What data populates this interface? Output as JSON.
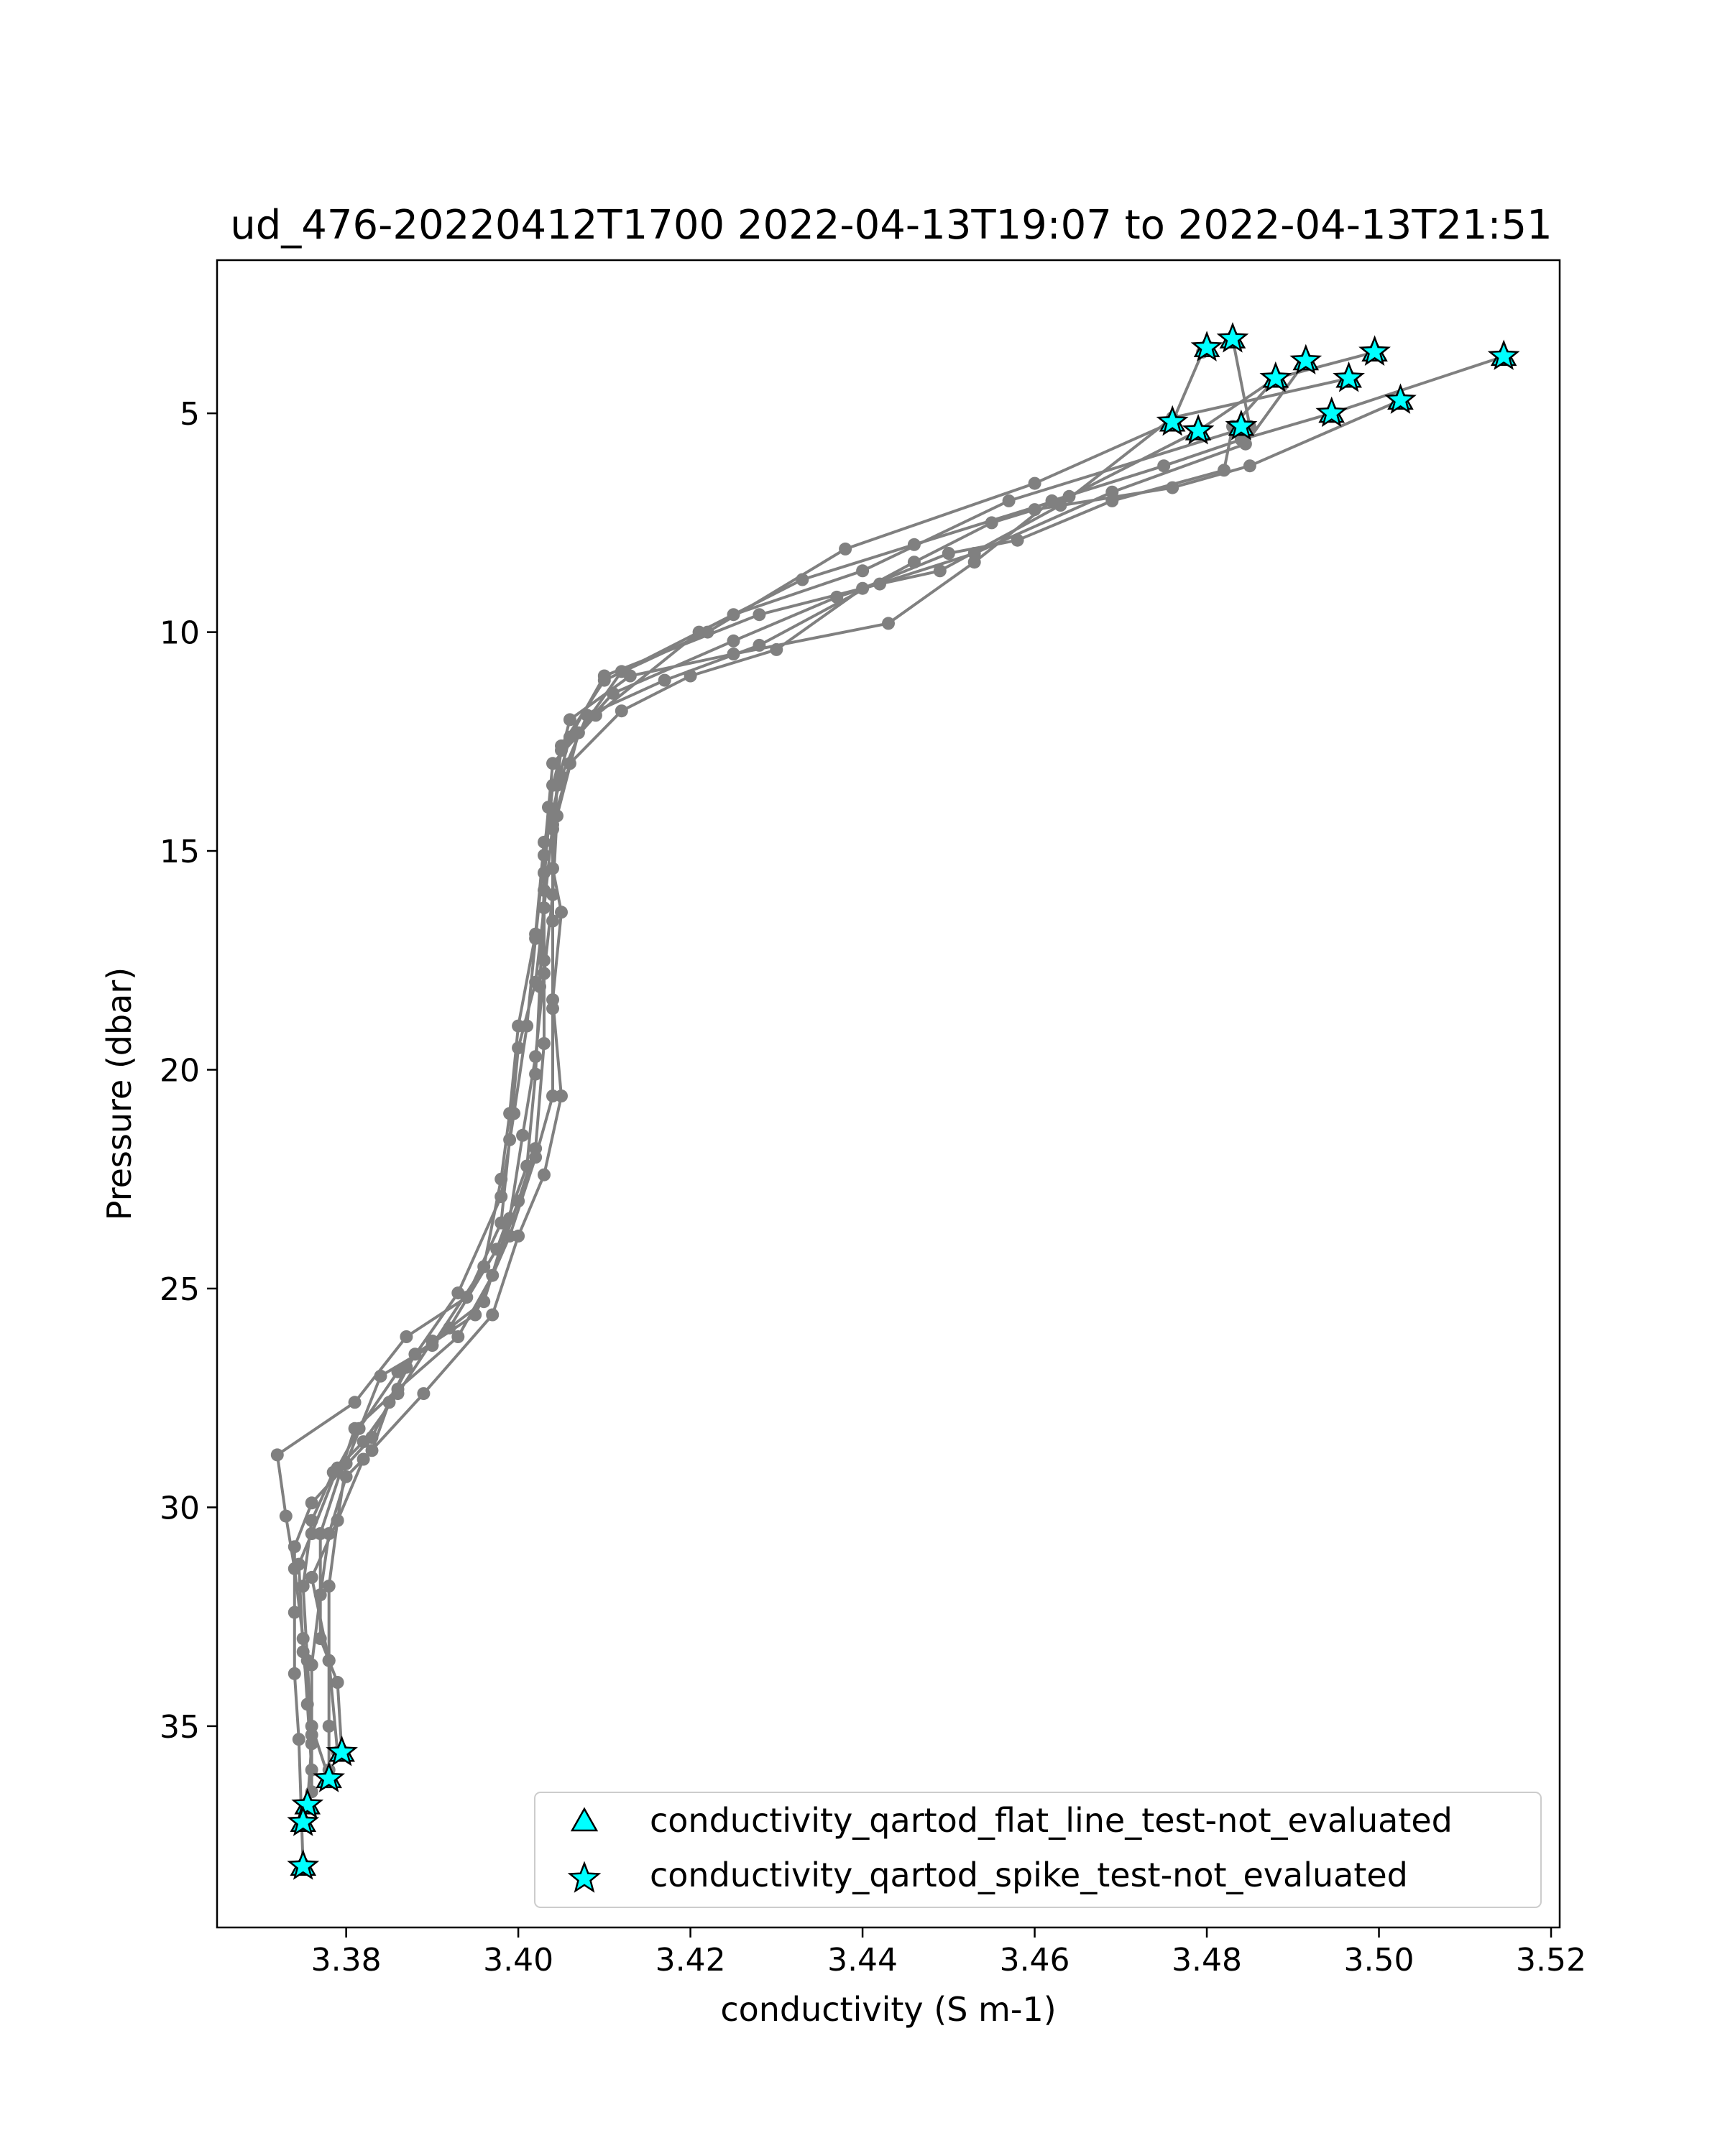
{
  "chart_data": {
    "type": "scatter",
    "title": "ud_476-20220412T1700 2022-04-13T19:07 to 2022-04-13T21:51",
    "xlabel": "conductivity (S m-1)",
    "ylabel": "Pressure (dbar)",
    "xlim": [
      3.365,
      3.521
    ],
    "ylim": [
      39.6,
      1.5
    ],
    "y_inverted": true,
    "grid": false,
    "x_ticks": [
      {
        "value": 3.38,
        "label": "3.38"
      },
      {
        "value": 3.4,
        "label": "3.40"
      },
      {
        "value": 3.42,
        "label": "3.42"
      },
      {
        "value": 3.44,
        "label": "3.44"
      },
      {
        "value": 3.46,
        "label": "3.46"
      },
      {
        "value": 3.48,
        "label": "3.48"
      },
      {
        "value": 3.5,
        "label": "3.50"
      },
      {
        "value": 3.52,
        "label": "3.52"
      }
    ],
    "y_ticks": [
      {
        "value": 5,
        "label": "5"
      },
      {
        "value": 10,
        "label": "10"
      },
      {
        "value": 15,
        "label": "15"
      },
      {
        "value": 20,
        "label": "20"
      },
      {
        "value": 25,
        "label": "25"
      },
      {
        "value": 30,
        "label": "30"
      },
      {
        "value": 35,
        "label": "35"
      }
    ],
    "colors": {
      "profile": "#808080",
      "flag_fill": "#00ffff",
      "flag_edge": "#000000"
    },
    "legend": {
      "placement": "lower right",
      "entries": [
        {
          "label": "conductivity_qartod_flat_line_test-not_evaluated",
          "marker": "triangle"
        },
        {
          "label": "conductivity_qartod_spike_test-not_evaluated",
          "marker": "star"
        }
      ]
    },
    "profiles": [
      {
        "points": [
          [
            3.4795,
            3.6
          ],
          [
            3.476,
            5.2
          ],
          [
            3.46,
            6.6
          ],
          [
            3.438,
            8.1
          ],
          [
            3.422,
            10.0
          ],
          [
            3.41,
            11.1
          ],
          [
            3.405,
            12.6
          ],
          [
            3.404,
            14.5
          ],
          [
            3.404,
            16.6
          ],
          [
            3.404,
            18.6
          ],
          [
            3.404,
            20.6
          ],
          [
            3.402,
            22.0
          ],
          [
            3.399,
            23.8
          ],
          [
            3.395,
            25.6
          ],
          [
            3.388,
            26.5
          ],
          [
            3.385,
            27.6
          ],
          [
            3.383,
            28.7
          ],
          [
            3.38,
            29.3
          ],
          [
            3.378,
            30.6
          ],
          [
            3.377,
            32.0
          ],
          [
            3.376,
            33.6
          ],
          [
            3.376,
            35.2
          ],
          [
            3.376,
            36.5
          ],
          [
            3.375,
            37.2
          ]
        ]
      },
      {
        "points": [
          [
            3.483,
            3.3
          ],
          [
            3.485,
            5.3
          ],
          [
            3.457,
            7.0
          ],
          [
            3.44,
            8.6
          ],
          [
            3.425,
            9.6
          ],
          [
            3.412,
            10.9
          ],
          [
            3.407,
            12.3
          ],
          [
            3.4045,
            14.2
          ],
          [
            3.404,
            16.0
          ],
          [
            3.403,
            17.8
          ],
          [
            3.402,
            19.7
          ],
          [
            3.4005,
            21.5
          ],
          [
            3.399,
            23.4
          ],
          [
            3.396,
            25.3
          ],
          [
            3.39,
            26.2
          ],
          [
            3.386,
            27.4
          ],
          [
            3.382,
            28.5
          ],
          [
            3.3785,
            29.2
          ],
          [
            3.376,
            30.3
          ],
          [
            3.375,
            31.8
          ],
          [
            3.3755,
            33.5
          ],
          [
            3.376,
            35.4
          ],
          [
            3.3755,
            36.8
          ]
        ]
      },
      {
        "points": [
          [
            3.488,
            4.2
          ],
          [
            3.479,
            5.4
          ],
          [
            3.464,
            6.9
          ],
          [
            3.446,
            8.0
          ],
          [
            3.433,
            8.8
          ],
          [
            3.421,
            10.0
          ],
          [
            3.409,
            11.9
          ],
          [
            3.404,
            13.0
          ],
          [
            3.403,
            15.1
          ],
          [
            3.402,
            17.0
          ],
          [
            3.401,
            19.0
          ],
          [
            3.3995,
            21.0
          ],
          [
            3.398,
            22.9
          ],
          [
            3.393,
            25.1
          ],
          [
            3.387,
            26.8
          ],
          [
            3.383,
            28.4
          ],
          [
            3.376,
            29.9
          ],
          [
            3.374,
            30.9
          ],
          [
            3.374,
            32.4
          ],
          [
            3.374,
            33.8
          ],
          [
            3.3745,
            35.3
          ],
          [
            3.375,
            38.2
          ]
        ]
      },
      {
        "points": [
          [
            3.4915,
            3.8
          ],
          [
            3.4845,
            5.7
          ],
          [
            3.469,
            6.8
          ],
          [
            3.453,
            8.2
          ],
          [
            3.437,
            9.2
          ],
          [
            3.425,
            10.2
          ],
          [
            3.411,
            11.4
          ],
          [
            3.405,
            12.7
          ],
          [
            3.4035,
            14.0
          ],
          [
            3.403,
            15.9
          ],
          [
            3.4025,
            18.1
          ],
          [
            3.402,
            20.1
          ],
          [
            3.401,
            22.2
          ],
          [
            3.3975,
            24.1
          ],
          [
            3.392,
            25.9
          ],
          [
            3.386,
            26.9
          ],
          [
            3.3815,
            28.2
          ],
          [
            3.379,
            29.1
          ],
          [
            3.376,
            30.6
          ],
          [
            3.3745,
            31.3
          ],
          [
            3.375,
            33.3
          ],
          [
            3.376,
            35.0
          ],
          [
            3.378,
            36.2
          ]
        ]
      },
      {
        "points": [
          [
            3.4965,
            4.2
          ],
          [
            3.476,
            5.1
          ],
          [
            3.463,
            7.1
          ],
          [
            3.449,
            8.6
          ],
          [
            3.442,
            8.9
          ],
          [
            3.428,
            9.6
          ],
          [
            3.41,
            11.0
          ],
          [
            3.406,
            12.4
          ],
          [
            3.4045,
            13.5
          ],
          [
            3.404,
            15.4
          ],
          [
            3.405,
            16.4
          ],
          [
            3.404,
            18.4
          ],
          [
            3.405,
            20.6
          ],
          [
            3.403,
            22.4
          ],
          [
            3.4,
            23.8
          ],
          [
            3.397,
            25.6
          ],
          [
            3.389,
            27.4
          ],
          [
            3.382,
            28.9
          ],
          [
            3.379,
            30.3
          ],
          [
            3.376,
            31.6
          ],
          [
            3.378,
            33.5
          ],
          [
            3.379,
            35.6
          ]
        ]
      },
      {
        "points": [
          [
            3.4995,
            3.6
          ],
          [
            3.488,
            4.2
          ],
          [
            3.483,
            5.3
          ],
          [
            3.482,
            6.3
          ],
          [
            3.469,
            7.0
          ],
          [
            3.458,
            7.9
          ],
          [
            3.45,
            8.2
          ],
          [
            3.44,
            9.0
          ],
          [
            3.43,
            10.4
          ],
          [
            3.42,
            11.0
          ],
          [
            3.412,
            11.8
          ],
          [
            3.406,
            13.0
          ],
          [
            3.404,
            14.4
          ],
          [
            3.403,
            16.3
          ],
          [
            3.402,
            18.0
          ],
          [
            3.4,
            19.5
          ],
          [
            3.399,
            21.6
          ],
          [
            3.398,
            23.5
          ],
          [
            3.394,
            25.2
          ],
          [
            3.387,
            26.1
          ],
          [
            3.381,
            27.6
          ],
          [
            3.372,
            28.8
          ],
          [
            3.373,
            30.2
          ],
          [
            3.374,
            31.4
          ],
          [
            3.375,
            33.0
          ],
          [
            3.3755,
            34.5
          ],
          [
            3.376,
            36.0
          ]
        ]
      },
      {
        "points": [
          [
            3.5025,
            4.7
          ],
          [
            3.485,
            6.2
          ],
          [
            3.476,
            6.7
          ],
          [
            3.46,
            7.2
          ],
          [
            3.455,
            7.5
          ],
          [
            3.446,
            8.4
          ],
          [
            3.428,
            10.3
          ],
          [
            3.417,
            11.1
          ],
          [
            3.408,
            11.9
          ],
          [
            3.405,
            13.3
          ],
          [
            3.403,
            14.8
          ],
          [
            3.402,
            16.9
          ],
          [
            3.4,
            19.0
          ],
          [
            3.399,
            21.0
          ],
          [
            3.398,
            22.5
          ],
          [
            3.396,
            24.5
          ],
          [
            3.39,
            26.3
          ],
          [
            3.384,
            27.0
          ],
          [
            3.38,
            29.0
          ],
          [
            3.379,
            30.3
          ],
          [
            3.378,
            31.8
          ],
          [
            3.378,
            33.5
          ],
          [
            3.378,
            35.0
          ],
          [
            3.378,
            36.0
          ]
        ]
      },
      {
        "points": [
          [
            3.5145,
            3.7
          ],
          [
            3.4945,
            5.0
          ],
          [
            3.484,
            5.6
          ],
          [
            3.475,
            6.2
          ],
          [
            3.462,
            7.0
          ],
          [
            3.453,
            8.4
          ],
          [
            3.443,
            9.8
          ],
          [
            3.425,
            10.5
          ],
          [
            3.413,
            11.0
          ],
          [
            3.406,
            12.0
          ],
          [
            3.404,
            13.5
          ],
          [
            3.403,
            15.5
          ],
          [
            3.403,
            17.5
          ],
          [
            3.403,
            19.4
          ],
          [
            3.402,
            21.8
          ],
          [
            3.4,
            23.0
          ],
          [
            3.397,
            24.7
          ],
          [
            3.393,
            26.1
          ],
          [
            3.386,
            27.3
          ],
          [
            3.381,
            28.2
          ],
          [
            3.377,
            30.6
          ],
          [
            3.377,
            33.0
          ],
          [
            3.379,
            34.0
          ],
          [
            3.3795,
            35.6
          ]
        ]
      }
    ],
    "flat_line_test_not_evaluated": [
      [
        3.48,
        3.5
      ],
      [
        3.483,
        3.3
      ],
      [
        3.488,
        4.2
      ],
      [
        3.4915,
        3.8
      ],
      [
        3.4965,
        4.2
      ],
      [
        3.4995,
        3.6
      ],
      [
        3.5145,
        3.7
      ],
      [
        3.476,
        5.2
      ],
      [
        3.479,
        5.4
      ],
      [
        3.484,
        5.3
      ],
      [
        3.4945,
        5.0
      ],
      [
        3.5025,
        4.7
      ],
      [
        3.3795,
        35.6
      ],
      [
        3.378,
        36.2
      ],
      [
        3.3755,
        36.8
      ],
      [
        3.375,
        37.2
      ],
      [
        3.375,
        38.2
      ]
    ],
    "spike_test_not_evaluated": [
      [
        3.48,
        3.5
      ],
      [
        3.483,
        3.3
      ],
      [
        3.488,
        4.2
      ],
      [
        3.4915,
        3.8
      ],
      [
        3.4965,
        4.2
      ],
      [
        3.4995,
        3.6
      ],
      [
        3.5145,
        3.7
      ],
      [
        3.476,
        5.2
      ],
      [
        3.479,
        5.4
      ],
      [
        3.484,
        5.3
      ],
      [
        3.4945,
        5.0
      ],
      [
        3.5025,
        4.7
      ],
      [
        3.3795,
        35.6
      ],
      [
        3.378,
        36.2
      ],
      [
        3.3755,
        36.8
      ],
      [
        3.375,
        37.2
      ],
      [
        3.375,
        38.2
      ]
    ]
  }
}
